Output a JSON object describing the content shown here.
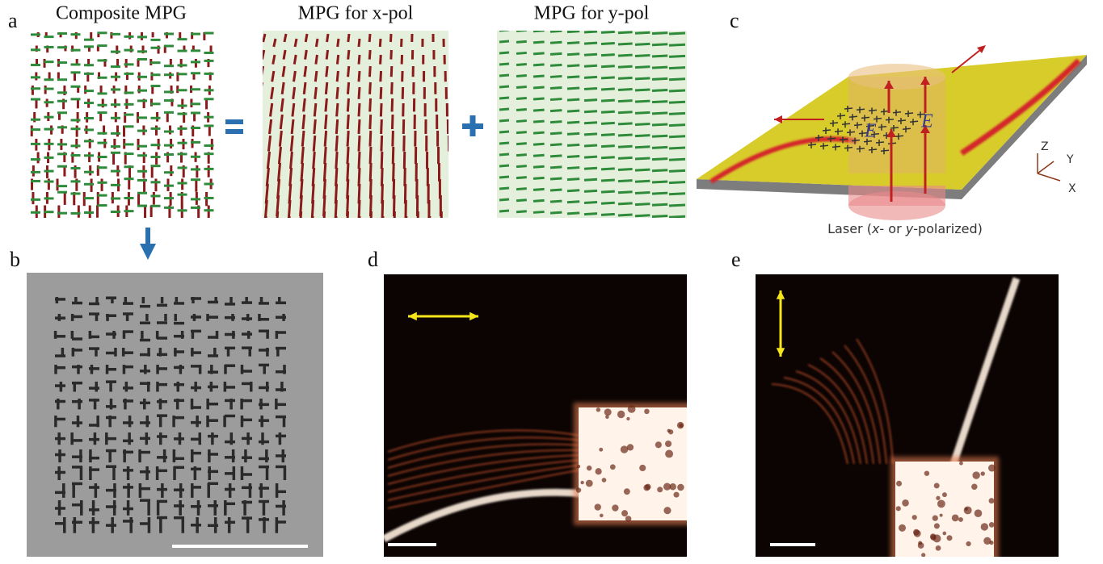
{
  "panels": {
    "a": {
      "label": "a",
      "titles": [
        "Composite MPG",
        "MPG for x-pol",
        "MPG for y-pol"
      ]
    },
    "b": {
      "label": "b"
    },
    "c": {
      "label": "c",
      "field_labels": [
        "E",
        "E"
      ],
      "axes": [
        "Z",
        "Y",
        "X"
      ],
      "laser_caption": [
        "Laser (",
        "x",
        "- or ",
        "y",
        "-polarized)"
      ]
    },
    "d": {
      "label": "d"
    },
    "e": {
      "label": "e"
    }
  }
}
